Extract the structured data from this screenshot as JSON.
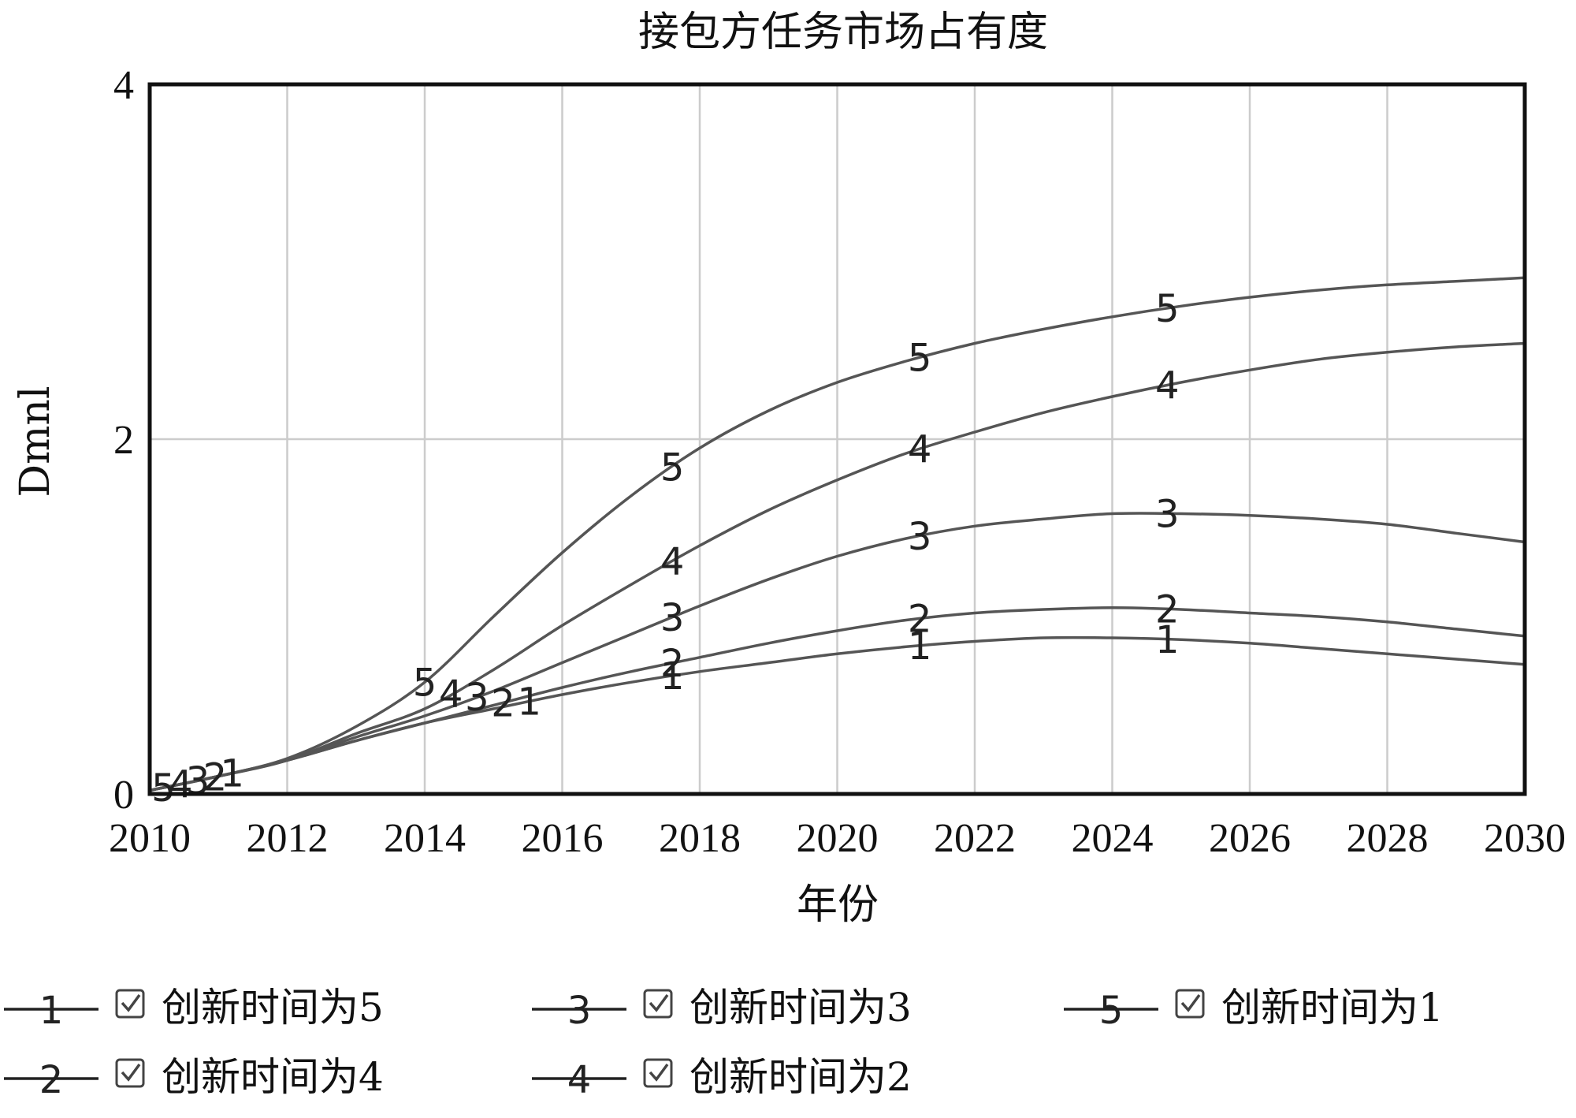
{
  "chart_data": {
    "type": "line",
    "title": "接包方任务市场占有度",
    "xlabel": "年份",
    "ylabel": "Dmnl",
    "xlim": [
      2010,
      2030
    ],
    "ylim": [
      0,
      4
    ],
    "x_ticks": [
      "2010",
      "2012",
      "2014",
      "2016",
      "2018",
      "2020",
      "2022",
      "2024",
      "2026",
      "2028",
      "2030"
    ],
    "y_ticks": [
      "0",
      "2",
      "4"
    ],
    "grid": true,
    "legend_position": "bottom",
    "line_color": "#555555",
    "series": [
      {
        "name": "创新时间为5",
        "marker": "1",
        "x": [
          2010,
          2011,
          2012,
          2013,
          2014,
          2015,
          2016,
          2017,
          2018,
          2019,
          2020,
          2021,
          2022,
          2023,
          2024,
          2025,
          2026,
          2027,
          2028,
          2029,
          2030
        ],
        "values": [
          0.02,
          0.1,
          0.19,
          0.3,
          0.4,
          0.48,
          0.56,
          0.63,
          0.69,
          0.74,
          0.79,
          0.83,
          0.86,
          0.88,
          0.88,
          0.87,
          0.85,
          0.82,
          0.79,
          0.76,
          0.73
        ]
      },
      {
        "name": "创新时间为4",
        "marker": "2",
        "x": [
          2010,
          2011,
          2012,
          2013,
          2014,
          2015,
          2016,
          2017,
          2018,
          2019,
          2020,
          2021,
          2022,
          2023,
          2024,
          2025,
          2026,
          2027,
          2028,
          2029,
          2030
        ],
        "values": [
          0.02,
          0.1,
          0.19,
          0.3,
          0.4,
          0.5,
          0.6,
          0.69,
          0.77,
          0.85,
          0.92,
          0.98,
          1.02,
          1.04,
          1.05,
          1.04,
          1.02,
          1.0,
          0.97,
          0.93,
          0.89
        ]
      },
      {
        "name": "创新时间为3",
        "marker": "3",
        "x": [
          2010,
          2011,
          2012,
          2013,
          2014,
          2015,
          2016,
          2017,
          2018,
          2019,
          2020,
          2021,
          2022,
          2023,
          2024,
          2025,
          2026,
          2027,
          2028,
          2029,
          2030
        ],
        "values": [
          0.02,
          0.1,
          0.19,
          0.32,
          0.44,
          0.58,
          0.74,
          0.9,
          1.06,
          1.21,
          1.34,
          1.44,
          1.51,
          1.55,
          1.58,
          1.58,
          1.57,
          1.55,
          1.52,
          1.47,
          1.42
        ]
      },
      {
        "name": "创新时间为2",
        "marker": "4",
        "x": [
          2010,
          2011,
          2012,
          2013,
          2014,
          2015,
          2016,
          2017,
          2018,
          2019,
          2020,
          2021,
          2022,
          2023,
          2024,
          2025,
          2026,
          2027,
          2028,
          2029,
          2030
        ],
        "values": [
          0.02,
          0.1,
          0.19,
          0.34,
          0.48,
          0.7,
          0.95,
          1.18,
          1.4,
          1.6,
          1.77,
          1.92,
          2.04,
          2.15,
          2.24,
          2.32,
          2.39,
          2.45,
          2.49,
          2.52,
          2.54
        ]
      },
      {
        "name": "创新时间为1",
        "marker": "5",
        "x": [
          2010,
          2011,
          2012,
          2013,
          2014,
          2015,
          2016,
          2017,
          2018,
          2019,
          2020,
          2021,
          2022,
          2023,
          2024,
          2025,
          2026,
          2027,
          2028,
          2029,
          2030
        ],
        "values": [
          0.02,
          0.1,
          0.2,
          0.38,
          0.63,
          1.0,
          1.36,
          1.68,
          1.95,
          2.16,
          2.32,
          2.44,
          2.54,
          2.62,
          2.69,
          2.75,
          2.8,
          2.84,
          2.87,
          2.89,
          2.91
        ]
      }
    ]
  }
}
